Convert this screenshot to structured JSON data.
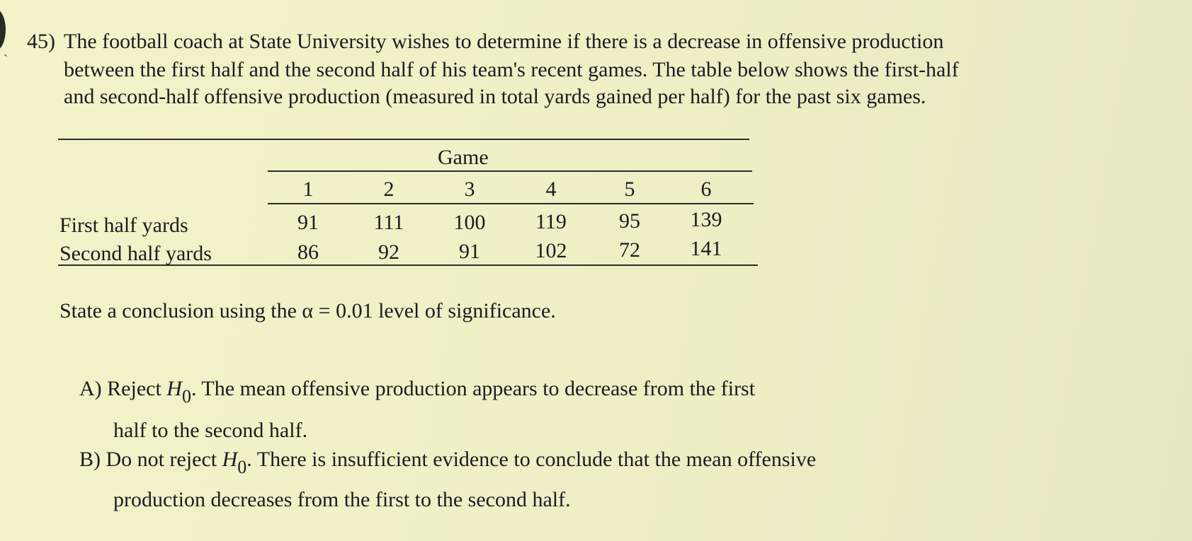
{
  "question": {
    "number": "45)",
    "lines": [
      "The football coach at State University wishes to determine if there is a decrease in offensive production",
      "between the first half and the second half of his team's recent games. The table below shows the first-half",
      "and second-half offensive production (measured in total yards gained per half) for the past six games."
    ]
  },
  "table": {
    "group_header": "Game",
    "columns": [
      "1",
      "2",
      "3",
      "4",
      "5",
      "6"
    ],
    "rows": [
      {
        "label": "First half yards",
        "values": [
          "91",
          "111",
          "100",
          "119",
          "95",
          "139"
        ]
      },
      {
        "label": "Second half yards",
        "values": [
          "86",
          "92",
          "91",
          "102",
          "72",
          "141"
        ]
      }
    ]
  },
  "prompt": "State a conclusion using the α = 0.01 level of significance.",
  "options": [
    {
      "letter": "A)",
      "lead": "Reject",
      "h_symbol": "H",
      "h_sub": "0",
      "after": ". The mean offensive production appears to decrease from the first",
      "cont": "half to the second half."
    },
    {
      "letter": "B)",
      "lead": "Do not reject",
      "h_symbol": "H",
      "h_sub": "0",
      "after": ". There is insufficient evidence to conclude that the mean offensive",
      "cont": "production decreases from the first to the second half."
    }
  ]
}
